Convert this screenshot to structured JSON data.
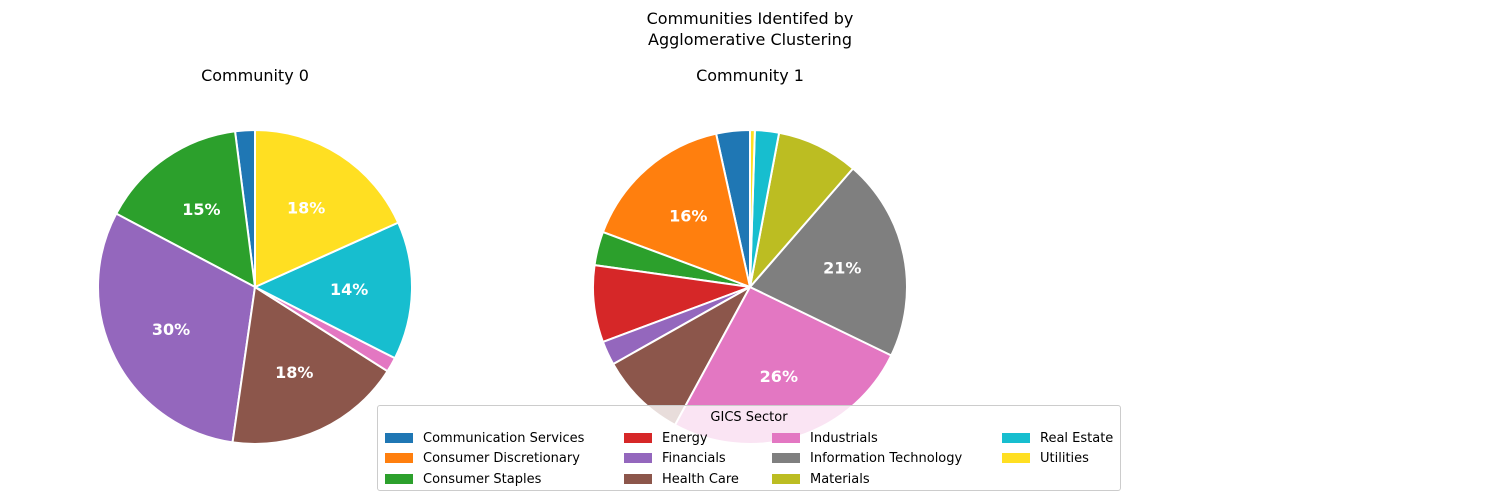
{
  "suptitle": [
    "Communities Identifed by",
    "Agglomerative Clustering"
  ],
  "colors": {
    "Communication Services": "#1f77b4",
    "Consumer Discretionary": "#ff7f0e",
    "Consumer Staples": "#2ca02c",
    "Energy": "#d62728",
    "Financials": "#9467bd",
    "Health Care": "#8c564b",
    "Industrials": "#e377c2",
    "Information Technology": "#7f7f7f",
    "Materials": "#bcbd22",
    "Real Estate": "#17becf",
    "Utilities": "#ffdf22"
  },
  "chart_data": [
    {
      "type": "pie",
      "title": "Community 0",
      "start_angle_deg": 90,
      "direction": "counterclockwise",
      "slices": [
        {
          "label": "Communication Services",
          "value": 2
        },
        {
          "label": "Consumer Staples",
          "value": 15,
          "text": "15%"
        },
        {
          "label": "Financials",
          "value": 30,
          "text": "30%"
        },
        {
          "label": "Health Care",
          "value": 18,
          "text": "18%"
        },
        {
          "label": "Industrials",
          "value": 1.5
        },
        {
          "label": "Real Estate",
          "value": 14,
          "text": "14%"
        },
        {
          "label": "Utilities",
          "value": 18,
          "text": "18%"
        }
      ]
    },
    {
      "type": "pie",
      "title": "Community 1",
      "start_angle_deg": 90,
      "direction": "counterclockwise",
      "slices": [
        {
          "label": "Communication Services",
          "value": 3.5
        },
        {
          "label": "Consumer Discretionary",
          "value": 16,
          "text": "16%"
        },
        {
          "label": "Consumer Staples",
          "value": 3.5
        },
        {
          "label": "Energy",
          "value": 8
        },
        {
          "label": "Financials",
          "value": 2.5
        },
        {
          "label": "Health Care",
          "value": 9
        },
        {
          "label": "Industrials",
          "value": 26,
          "text": "26%"
        },
        {
          "label": "Information Technology",
          "value": 21,
          "text": "21%"
        },
        {
          "label": "Materials",
          "value": 8.5
        },
        {
          "label": "Real Estate",
          "value": 2.5
        },
        {
          "label": "Utilities",
          "value": 0.5
        }
      ]
    }
  ],
  "legend": {
    "title": "GICS Sector",
    "columns": [
      [
        "Communication Services",
        "Consumer Discretionary",
        "Consumer Staples"
      ],
      [
        "Energy",
        "Financials",
        "Health Care"
      ],
      [
        "Industrials",
        "Information Technology",
        "Materials"
      ],
      [
        "Real Estate",
        "Utilities"
      ]
    ]
  }
}
